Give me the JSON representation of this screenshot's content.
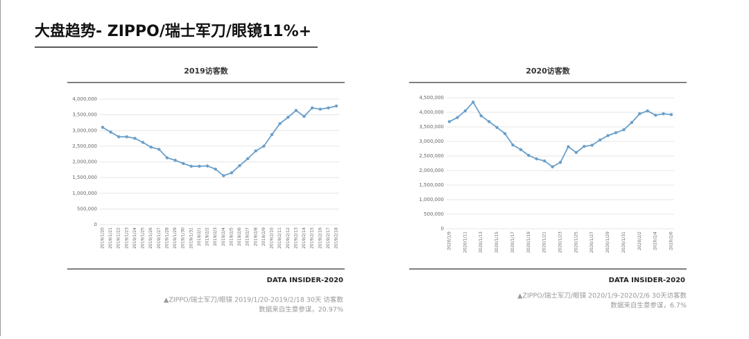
{
  "slide_title": "大盘趋势- ZIPPO/瑞士军刀/眼镜11%+",
  "chart_data": [
    {
      "type": "line",
      "title": "2019访客数",
      "source": "DATA INSIDER-2020",
      "notes": [
        "▲ZIPPO/瑞士军刀/眼镜 2019/1/20-2019/2/18 30天 访客数",
        "数据来自生意参谋，20.97%"
      ],
      "color": "#6a9fca",
      "grid": true,
      "categories": [
        "2019/1/20",
        "2019/1/21",
        "2019/1/22",
        "2019/1/23",
        "2019/1/24",
        "2019/1/25",
        "2019/1/26",
        "2019/1/27",
        "2019/1/28",
        "2019/1/29",
        "2019/1/30",
        "2019/1/31",
        "2019/2/1",
        "2019/2/2",
        "2019/2/3",
        "2019/2/4",
        "2019/2/5",
        "2019/2/6",
        "2019/2/7",
        "2019/2/8",
        "2019/2/9",
        "2019/2/10",
        "2019/2/11",
        "2019/2/12",
        "2019/2/13",
        "2019/2/14",
        "2019/2/15",
        "2019/2/16",
        "2019/2/17",
        "2019/2/18"
      ],
      "values": [
        3100000,
        2950000,
        2800000,
        2800000,
        2750000,
        2620000,
        2470000,
        2400000,
        2130000,
        2050000,
        1950000,
        1860000,
        1860000,
        1870000,
        1770000,
        1560000,
        1650000,
        1880000,
        2100000,
        2350000,
        2500000,
        2870000,
        3220000,
        3420000,
        3640000,
        3450000,
        3720000,
        3680000,
        3720000,
        3780000
      ],
      "ylim": [
        0,
        4000000
      ],
      "yticks": [
        0,
        {
          "value": 500000,
          "label": "500,000"
        },
        {
          "value": 1000000,
          "label": "1,000,000"
        },
        {
          "value": 1500000,
          "label": "1,500,000"
        },
        {
          "value": 2000000,
          "label": "2,000,000"
        },
        {
          "value": 2500000,
          "label": "2,500,000"
        },
        {
          "value": 3000000,
          "label": "3,000,000"
        },
        {
          "value": 3500000,
          "label": "3,500,000"
        },
        {
          "value": 4000000,
          "label": "4,000,000"
        }
      ]
    },
    {
      "type": "line",
      "title": "2020访客数",
      "source": "DATA INSIDER-2020",
      "notes": [
        "▲ZIPPO/瑞士军刀/眼镜 2020/1/9-2020/2/6 30天访客数",
        "数据来自生意参谋，6.7%"
      ],
      "color": "#6a9fca",
      "grid": true,
      "categories": [
        "2020/1/9",
        null,
        "2020/1/11",
        null,
        "2020/1/13",
        null,
        "2020/1/15",
        null,
        "2020/1/17",
        null,
        "2020/1/19",
        null,
        "2020/1/21",
        null,
        "2020/1/23",
        null,
        "2020/1/25",
        null,
        "2020/1/27",
        null,
        "2020/1/29",
        null,
        "2020/1/31",
        null,
        "2020/2/2",
        null,
        "2020/2/4",
        null,
        "2020/2/6"
      ],
      "values": [
        3680000,
        3820000,
        4050000,
        4350000,
        3880000,
        3680000,
        3480000,
        3270000,
        2880000,
        2720000,
        2520000,
        2400000,
        2330000,
        2130000,
        2280000,
        2820000,
        2620000,
        2830000,
        2870000,
        3050000,
        3200000,
        3300000,
        3400000,
        3650000,
        3950000,
        4050000,
        3900000,
        3950000,
        3920000
      ],
      "ylim": [
        0,
        4500000
      ],
      "yticks": [
        0,
        {
          "value": 500000,
          "label": "500,000"
        },
        {
          "value": 1000000,
          "label": "1,000,000"
        },
        {
          "value": 1500000,
          "label": "1,500,000"
        },
        {
          "value": 2000000,
          "label": "2,000,000"
        },
        {
          "value": 2500000,
          "label": "2,500,000"
        },
        {
          "value": 3000000,
          "label": "3,000,000"
        },
        {
          "value": 3500000,
          "label": "3,500,000"
        },
        {
          "value": 4000000,
          "label": "4,000,000"
        },
        {
          "value": 4500000,
          "label": "4,500,000"
        }
      ]
    }
  ]
}
